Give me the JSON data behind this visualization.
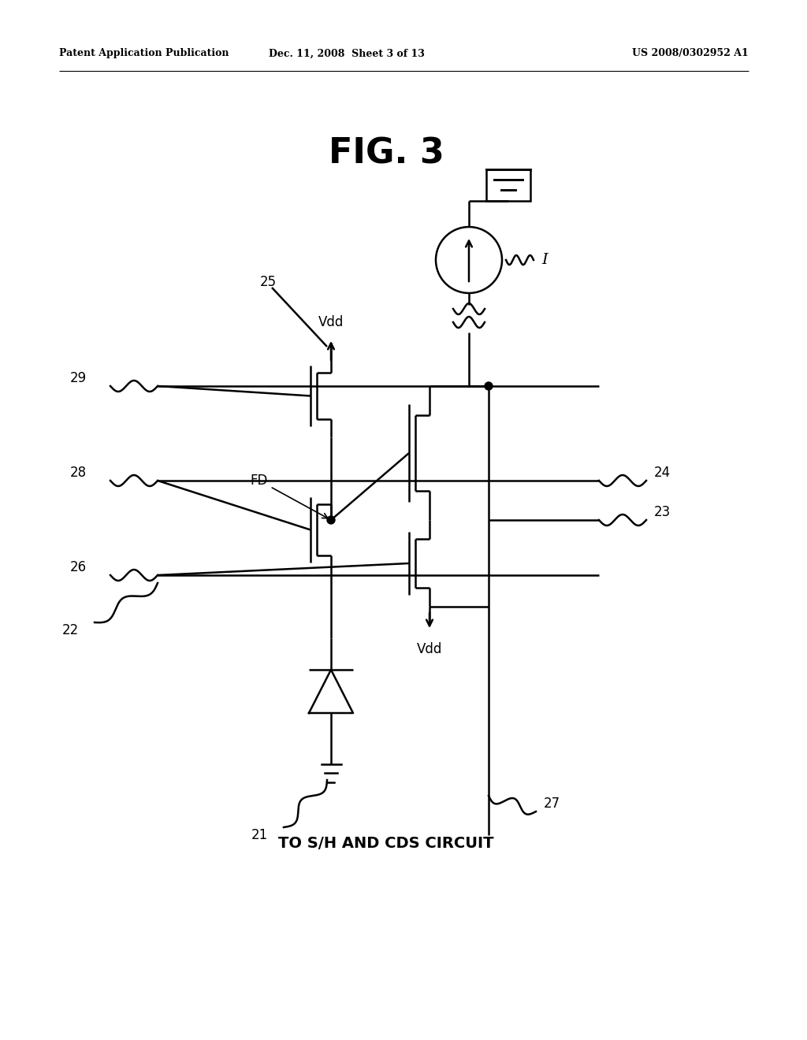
{
  "title": "FIG. 3",
  "header_left": "Patent Application Publication",
  "header_center": "Dec. 11, 2008  Sheet 3 of 13",
  "header_right": "US 2008/0302952 A1",
  "bg_color": "#ffffff",
  "line_color": "#000000",
  "fig_width": 10.24,
  "fig_height": 13.2,
  "lw": 1.8
}
